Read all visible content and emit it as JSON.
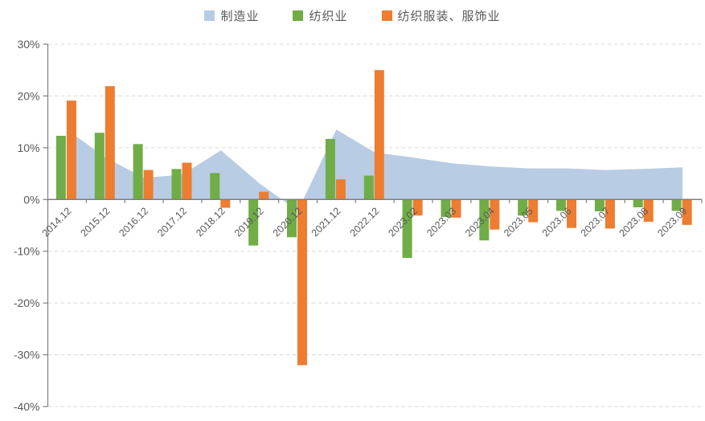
{
  "chart_data": {
    "type": "combo",
    "title": "",
    "categories": [
      "2014.12",
      "2015.12",
      "2016.12",
      "2017.12",
      "2018.12",
      "2019.12",
      "2020.12",
      "2021.12",
      "2022.12",
      "2023.02",
      "2023.03",
      "2023.04",
      "2023.05",
      "2023.06",
      "2023.07",
      "2023.08",
      "2023.09"
    ],
    "series": [
      {
        "name": "制造业",
        "type": "area",
        "color": "#b8cce4",
        "values": [
          13.5,
          8.1,
          4.2,
          4.8,
          9.5,
          3.1,
          -2.2,
          13.5,
          9.1,
          8.1,
          7.0,
          6.4,
          6.0,
          6.0,
          5.7,
          5.9,
          6.2
        ]
      },
      {
        "name": "纺织业",
        "type": "bar",
        "color": "#70ad47",
        "values": [
          12.3,
          12.9,
          10.7,
          5.9,
          5.1,
          -8.9,
          -7.3,
          11.7,
          4.6,
          -11.3,
          -3.4,
          -7.9,
          -3.1,
          -2.2,
          -2.3,
          -1.5,
          -2.2
        ]
      },
      {
        "name": "纺织服装、服饰业",
        "type": "bar",
        "color": "#ed7d31",
        "values": [
          19.1,
          21.9,
          5.7,
          7.1,
          -1.6,
          1.5,
          -32.0,
          3.9,
          25.0,
          -3.1,
          -3.5,
          -5.8,
          -4.4,
          -5.5,
          -5.6,
          -4.3,
          -4.9
        ]
      }
    ],
    "y_axis": {
      "unit": "%",
      "ticks": [
        "30%",
        "20%",
        "10%",
        "0%",
        "-10%",
        "-20%",
        "-30%",
        "-40%"
      ],
      "tick_values": [
        30,
        20,
        10,
        0,
        -10,
        -20,
        -30,
        -40
      ],
      "ylim": [
        -40,
        30
      ]
    },
    "xlabel": "",
    "ylabel": "",
    "grid": "horizontal-dashed",
    "legend_position": "top-center"
  },
  "colors": {
    "area_fill": "#b8cce4",
    "bar_green": "#70ad47",
    "bar_orange": "#ed7d31",
    "gridline": "#d9d9d9",
    "axis_line": "#7f7f7f",
    "tick_label": "#595959",
    "background": "#ffffff"
  }
}
